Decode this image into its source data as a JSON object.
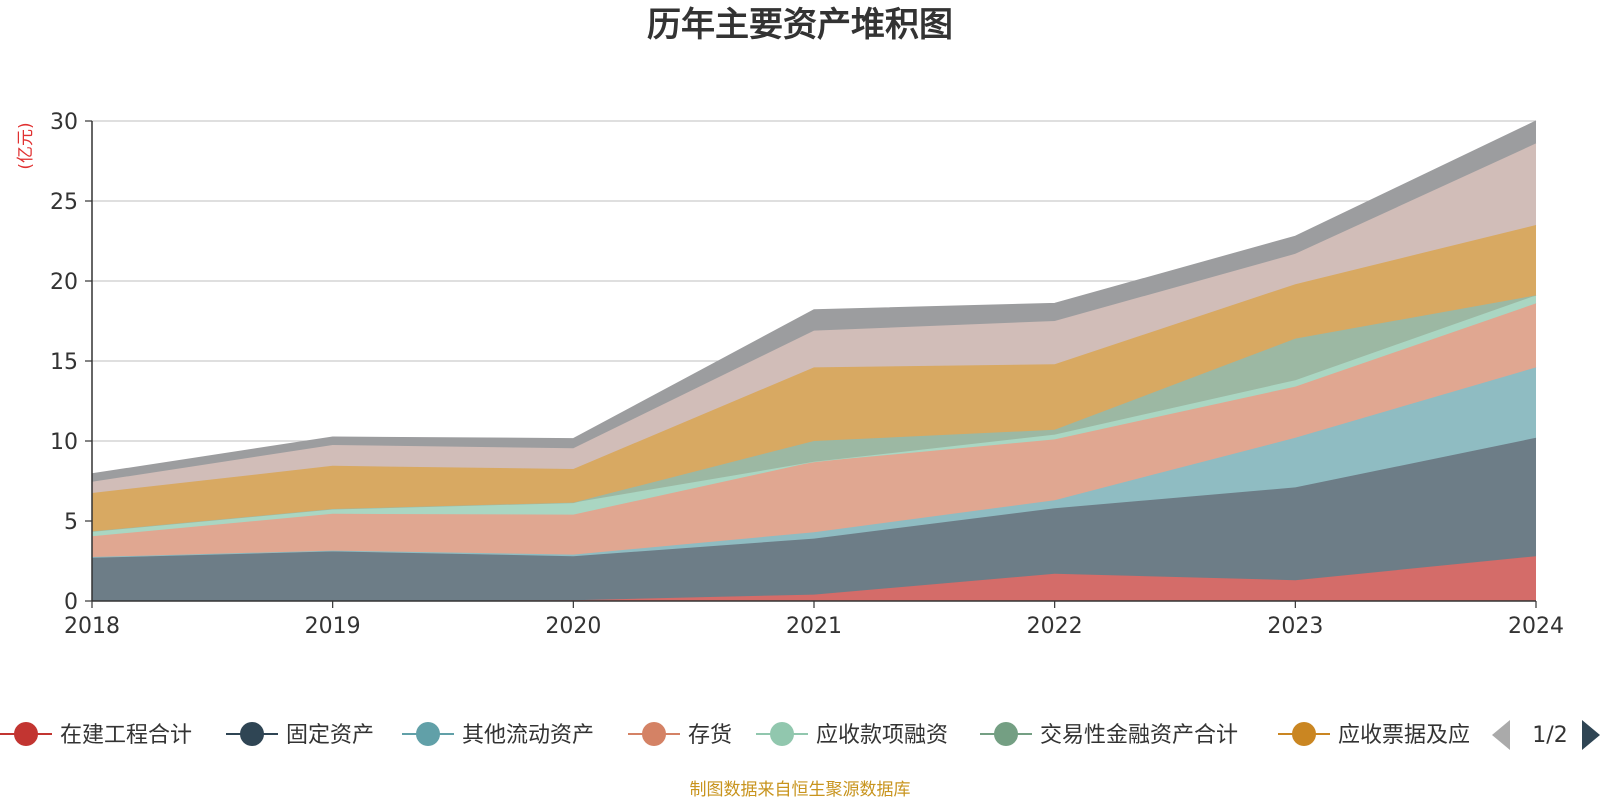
{
  "chart_data": {
    "type": "area",
    "title": "历年主要资产堆积图",
    "unit_label": "(亿元)",
    "x": [
      "2018",
      "2019",
      "2020",
      "2021",
      "2022",
      "2023",
      "2024"
    ],
    "ylim": [
      0,
      30
    ],
    "yticks": [
      "0",
      "5",
      "10",
      "15",
      "20",
      "25",
      "30"
    ],
    "grid": true,
    "stacked": true,
    "series": [
      {
        "name": "在建工程合计",
        "color": "#c23531",
        "fill": "#d46c69",
        "values": [
          0.0,
          0.0,
          0.05,
          0.4,
          1.7,
          1.3,
          2.8
        ]
      },
      {
        "name": "固定资产",
        "color": "#2f4554",
        "fill": "#6d7d87",
        "values": [
          2.7,
          3.1,
          2.75,
          3.5,
          4.1,
          5.8,
          7.4
        ]
      },
      {
        "name": "其他流动资产",
        "color": "#61a0a8",
        "fill": "#8fbcc2",
        "values": [
          0.05,
          0.05,
          0.1,
          0.4,
          0.5,
          3.1,
          4.4
        ]
      },
      {
        "name": "存货",
        "color": "#d48265",
        "fill": "#e0a791",
        "values": [
          1.3,
          2.3,
          2.5,
          4.4,
          3.8,
          3.2,
          4.0
        ]
      },
      {
        "name": "应收款项融资",
        "color": "#91c7ae",
        "fill": "#aad6c2",
        "values": [
          0.3,
          0.3,
          0.75,
          0.0,
          0.3,
          0.4,
          0.5
        ]
      },
      {
        "name": "交易性金融资产合计",
        "color": "#749f83",
        "fill": "#9cb8a3",
        "values": [
          0.0,
          0.0,
          0.0,
          1.3,
          0.3,
          2.6,
          0.0
        ]
      },
      {
        "name": "应收票据及应收账款",
        "color": "#ca8622",
        "fill": "#d8a962",
        "values": [
          2.4,
          2.7,
          2.1,
          4.6,
          4.1,
          3.4,
          4.4
        ]
      },
      {
        "name": "",
        "color": "#bda29a",
        "fill": "#d1bdb8",
        "values": [
          0.7,
          1.3,
          1.3,
          2.3,
          2.7,
          1.9,
          5.1
        ]
      },
      {
        "name": "",
        "color": "#6e7074",
        "fill": "#9c9d9f",
        "values": [
          0.5,
          0.5,
          0.6,
          1.3,
          1.1,
          1.1,
          1.4
        ]
      }
    ]
  },
  "legend": {
    "items": [
      {
        "label": "在建工程合计",
        "color": "#c23531"
      },
      {
        "label": "固定资产",
        "color": "#2f4554"
      },
      {
        "label": "其他流动资产",
        "color": "#61a0a8"
      },
      {
        "label": "存货",
        "color": "#d48265"
      },
      {
        "label": "应收款项融资",
        "color": "#91c7ae"
      },
      {
        "label": "交易性金融资产合计",
        "color": "#749f83"
      },
      {
        "label": "应收票据及应",
        "color": "#ca8622"
      }
    ],
    "page_text": "1/2",
    "prev_icon": "triangle-left-icon",
    "next_icon": "triangle-right-icon",
    "prev_color": "#aaaaaa",
    "next_color": "#2f4554"
  },
  "footer": {
    "source": "制图数据来自恒生聚源数据库"
  }
}
